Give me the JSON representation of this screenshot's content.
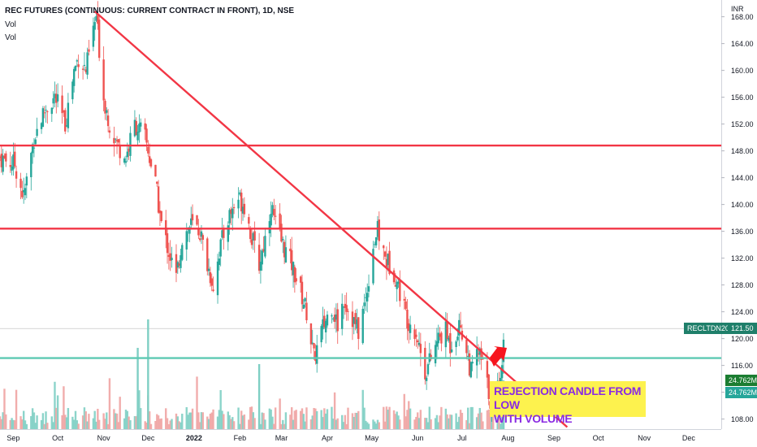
{
  "header": {
    "title": "REC FUTURES (CONTINUOUS: CURRENT CONTRACT IN FRONT), 1D, NSE",
    "vol_line1": "Vol",
    "vol_line2": "Vol"
  },
  "annotation": {
    "line1": "REJECTION CANDLE FROM LOW",
    "line2": "WITH VOLUME"
  },
  "price_axis": {
    "currency": "INR",
    "symbol_tag": "RECLTDN2022",
    "last_price_label": "121.50",
    "volume_label_1": "24.762M",
    "volume_label_2": "24.762M"
  },
  "colors": {
    "up": "#26a69a",
    "down": "#ef5350",
    "trendline": "#f23645",
    "support": "#5ec9b3",
    "arrow": "#f7151e",
    "annotation_bg": "#fdf24e",
    "annotation_text": "#8a2be2"
  },
  "chart_data": {
    "type": "candlestick",
    "title": "REC FUTURES (CONTINUOUS: CURRENT CONTRACT IN FRONT), 1D, NSE",
    "y_axis": {
      "min": 106.5,
      "max": 170.5,
      "ticks": [
        108,
        112,
        116,
        120,
        124,
        128,
        132,
        136,
        140,
        144,
        148,
        152,
        156,
        160,
        164,
        168
      ]
    },
    "x_axis": {
      "start": "2021-08-23",
      "end": "2022-12-23",
      "ticks": [
        {
          "date": "2021-09-01",
          "label": "Sep"
        },
        {
          "date": "2021-10-01",
          "label": "Oct"
        },
        {
          "date": "2021-11-01",
          "label": "Nov"
        },
        {
          "date": "2021-12-01",
          "label": "Dec"
        },
        {
          "date": "2022-01-01",
          "label": "2022"
        },
        {
          "date": "2022-02-01",
          "label": "Feb"
        },
        {
          "date": "2022-03-01",
          "label": "Mar"
        },
        {
          "date": "2022-04-01",
          "label": "Apr"
        },
        {
          "date": "2022-05-01",
          "label": "May"
        },
        {
          "date": "2022-06-01",
          "label": "Jun"
        },
        {
          "date": "2022-07-01",
          "label": "Jul"
        },
        {
          "date": "2022-08-01",
          "label": "Aug"
        },
        {
          "date": "2022-09-01",
          "label": "Sep"
        },
        {
          "date": "2022-10-01",
          "label": "Oct"
        },
        {
          "date": "2022-11-01",
          "label": "Nov"
        },
        {
          "date": "2022-12-01",
          "label": "Dec"
        }
      ]
    },
    "price_path": [
      {
        "date": "2021-08-23",
        "close": 147
      },
      {
        "date": "2021-09-02",
        "close": 146
      },
      {
        "date": "2021-09-08",
        "close": 141
      },
      {
        "date": "2021-09-15",
        "close": 150
      },
      {
        "date": "2021-09-22",
        "close": 154
      },
      {
        "date": "2021-09-29",
        "close": 156
      },
      {
        "date": "2021-10-06",
        "close": 152
      },
      {
        "date": "2021-10-12",
        "close": 160
      },
      {
        "date": "2021-10-15",
        "close": 162
      },
      {
        "date": "2021-10-20",
        "close": 160
      },
      {
        "date": "2021-10-25",
        "close": 166
      },
      {
        "date": "2021-10-27",
        "close": 168
      },
      {
        "date": "2021-11-01",
        "close": 156
      },
      {
        "date": "2021-11-05",
        "close": 152
      },
      {
        "date": "2021-11-10",
        "close": 149
      },
      {
        "date": "2021-11-16",
        "close": 147
      },
      {
        "date": "2021-11-22",
        "close": 152
      },
      {
        "date": "2021-11-29",
        "close": 150
      },
      {
        "date": "2021-12-06",
        "close": 143
      },
      {
        "date": "2021-12-10",
        "close": 137
      },
      {
        "date": "2021-12-15",
        "close": 133
      },
      {
        "date": "2021-12-20",
        "close": 129
      },
      {
        "date": "2021-12-24",
        "close": 135
      },
      {
        "date": "2021-12-30",
        "close": 137
      },
      {
        "date": "2022-01-05",
        "close": 136
      },
      {
        "date": "2022-01-10",
        "close": 131
      },
      {
        "date": "2022-01-14",
        "close": 128
      },
      {
        "date": "2022-01-18",
        "close": 133
      },
      {
        "date": "2022-01-24",
        "close": 138
      },
      {
        "date": "2022-01-31",
        "close": 141
      },
      {
        "date": "2022-02-04",
        "close": 140
      },
      {
        "date": "2022-02-09",
        "close": 135
      },
      {
        "date": "2022-02-14",
        "close": 131
      },
      {
        "date": "2022-02-18",
        "close": 135
      },
      {
        "date": "2022-02-22",
        "close": 140
      },
      {
        "date": "2022-02-25",
        "close": 137
      },
      {
        "date": "2022-03-02",
        "close": 134
      },
      {
        "date": "2022-03-08",
        "close": 131
      },
      {
        "date": "2022-03-14",
        "close": 127
      },
      {
        "date": "2022-03-18",
        "close": 124
      },
      {
        "date": "2022-03-23",
        "close": 117
      },
      {
        "date": "2022-03-28",
        "close": 121
      },
      {
        "date": "2022-04-04",
        "close": 125
      },
      {
        "date": "2022-04-08",
        "close": 122
      },
      {
        "date": "2022-04-12",
        "close": 126
      },
      {
        "date": "2022-04-18",
        "close": 123
      },
      {
        "date": "2022-04-22",
        "close": 121
      },
      {
        "date": "2022-04-27",
        "close": 126
      },
      {
        "date": "2022-05-02",
        "close": 134
      },
      {
        "date": "2022-05-05",
        "close": 136
      },
      {
        "date": "2022-05-10",
        "close": 132
      },
      {
        "date": "2022-05-16",
        "close": 130
      },
      {
        "date": "2022-05-20",
        "close": 127
      },
      {
        "date": "2022-05-25",
        "close": 123
      },
      {
        "date": "2022-05-31",
        "close": 121
      },
      {
        "date": "2022-06-03",
        "close": 118
      },
      {
        "date": "2022-06-06",
        "close": 115
      },
      {
        "date": "2022-06-10",
        "close": 117
      },
      {
        "date": "2022-06-15",
        "close": 120
      },
      {
        "date": "2022-06-20",
        "close": 121
      },
      {
        "date": "2022-06-23",
        "close": 119
      },
      {
        "date": "2022-06-27",
        "close": 121
      },
      {
        "date": "2022-06-30",
        "close": 122
      },
      {
        "date": "2022-07-04",
        "close": 118
      },
      {
        "date": "2022-07-07",
        "close": 115
      },
      {
        "date": "2022-07-12",
        "close": 118
      },
      {
        "date": "2022-07-15",
        "close": 116
      },
      {
        "date": "2022-07-20",
        "close": 111
      },
      {
        "date": "2022-07-22",
        "close": 109
      },
      {
        "date": "2022-07-26",
        "close": 114
      },
      {
        "date": "2022-07-28",
        "close": 117
      },
      {
        "date": "2022-07-30",
        "close": 121
      }
    ],
    "lines": [
      {
        "name": "resistance-148.8",
        "type": "horizontal",
        "y": 148.8,
        "from": "2021-08-23",
        "to": "2022-12-23"
      },
      {
        "name": "resistance-136.4",
        "type": "horizontal",
        "y": 136.4,
        "from": "2021-08-23",
        "to": "2022-12-23"
      },
      {
        "name": "support-117.1",
        "type": "horizontal",
        "y": 117.1,
        "from": "2021-08-23",
        "to": "2022-12-23"
      },
      {
        "name": "downtrend",
        "type": "trend",
        "from": {
          "date": "2021-10-26",
          "price": 168.8
        },
        "to": {
          "date": "2022-09-10",
          "price": 106.8
        }
      }
    ],
    "last_price": 121.5
  }
}
